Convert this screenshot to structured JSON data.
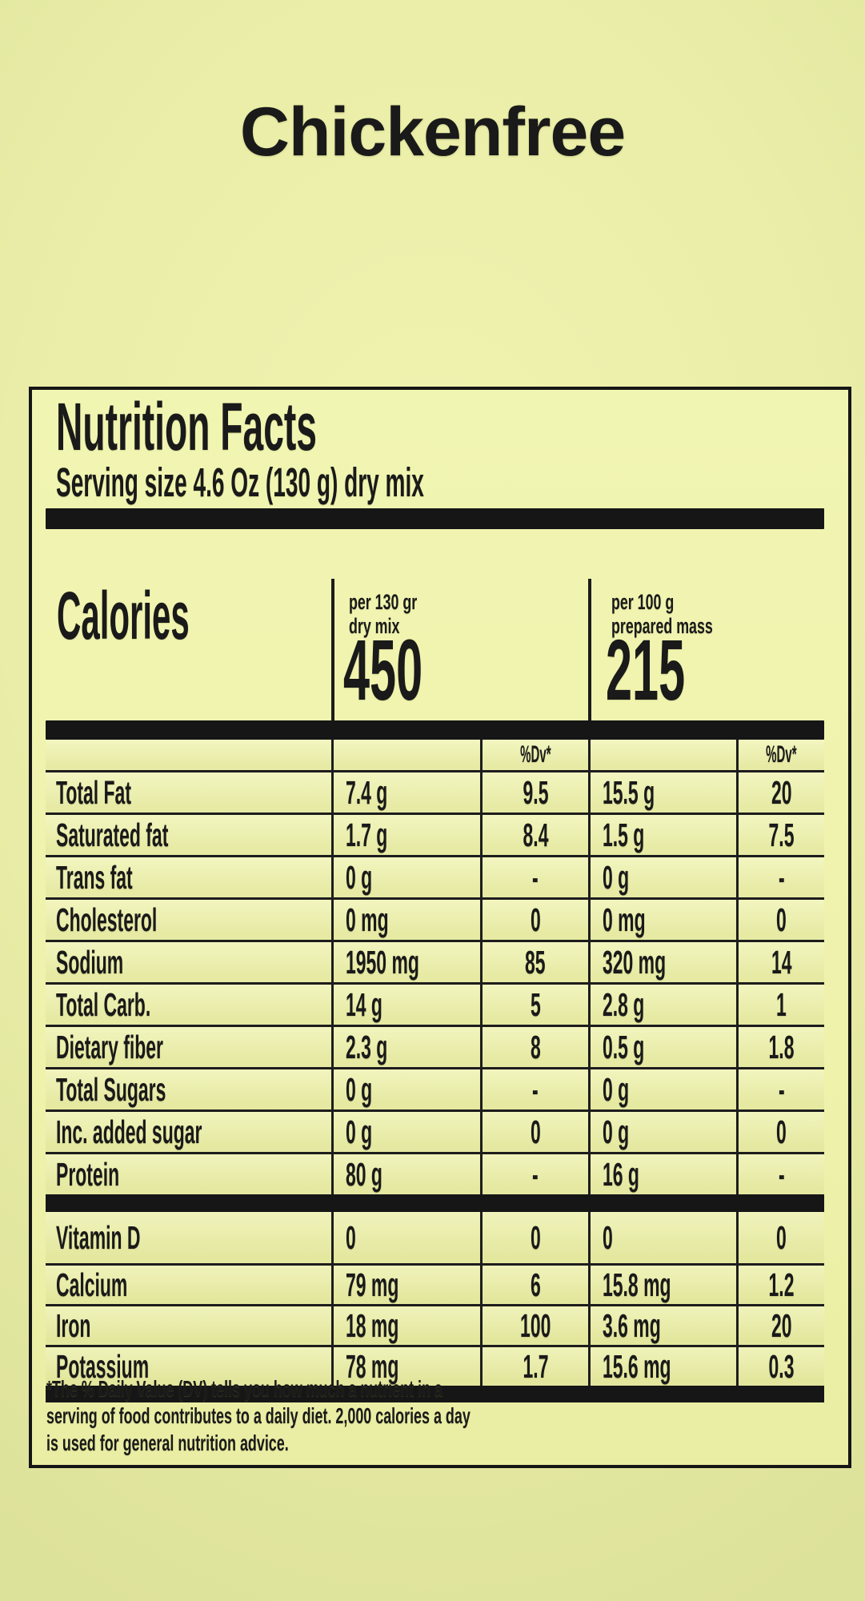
{
  "page": {
    "title": "Chickenfree"
  },
  "colors": {
    "background": "#e9eda7",
    "panel": "#eef2ab",
    "ink": "#1a1a1a",
    "bar": "#161616"
  },
  "label": {
    "title": "Nutrition Facts",
    "serving": "Serving size 4.6 Oz (130 g) dry mix",
    "calories": {
      "heading": "Calories",
      "columns": [
        {
          "caption_line1": "per 130 gr",
          "caption_line2": "dry mix",
          "value": "450"
        },
        {
          "caption_line1": "per 100 g",
          "caption_line2": "prepared mass",
          "value": "215"
        }
      ]
    },
    "table": {
      "dv_header": "%Dv*",
      "main_rows": [
        {
          "label": "Total Fat",
          "amount1": "7.4 g",
          "dv1": "9.5",
          "amount2": "15.5 g",
          "dv2": "20"
        },
        {
          "label": "Saturated fat",
          "amount1": "1.7 g",
          "dv1": "8.4",
          "amount2": "1.5 g",
          "dv2": "7.5"
        },
        {
          "label": "Trans fat",
          "amount1": "0 g",
          "dv1": "-",
          "amount2": "0 g",
          "dv2": "-"
        },
        {
          "label": "Cholesterol",
          "amount1": "0 mg",
          "dv1": "0",
          "amount2": "0 mg",
          "dv2": "0"
        },
        {
          "label": "Sodium",
          "amount1": "1950 mg",
          "dv1": "85",
          "amount2": "320 mg",
          "dv2": "14"
        },
        {
          "label": "Total Carb.",
          "amount1": "14 g",
          "dv1": "5",
          "amount2": "2.8 g",
          "dv2": "1"
        },
        {
          "label": "Dietary fiber",
          "amount1": "2.3 g",
          "dv1": "8",
          "amount2": "0.5 g",
          "dv2": "1.8"
        },
        {
          "label": "Total Sugars",
          "amount1": "0 g",
          "dv1": "-",
          "amount2": "0 g",
          "dv2": "-"
        },
        {
          "label": "Inc. added sugar",
          "amount1": "0 g",
          "dv1": "0",
          "amount2": "0 g",
          "dv2": "0"
        },
        {
          "label": "Protein",
          "amount1": "80 g",
          "dv1": "-",
          "amount2": "16 g",
          "dv2": "-"
        }
      ],
      "vitamin_rows": [
        {
          "label": "Vitamin D",
          "amount1": "0",
          "dv1": "0",
          "amount2": "0",
          "dv2": "0"
        },
        {
          "label": "Calcium",
          "amount1": "79 mg",
          "dv1": "6",
          "amount2": "15.8 mg",
          "dv2": "1.2"
        },
        {
          "label": "Iron",
          "amount1": "18 mg",
          "dv1": "100",
          "amount2": "3.6 mg",
          "dv2": "20"
        },
        {
          "label": "Potassium",
          "amount1": "78 mg",
          "dv1": "1.7",
          "amount2": "15.6 mg",
          "dv2": "0.3"
        }
      ]
    },
    "footnote": {
      "line1": "*The % Daily Value (DV) tells you how much a nutrient in a",
      "line2": "serving of food contributes to a daily diet. 2,000 calories a day",
      "line3": "is used for general nutrition advice."
    }
  }
}
